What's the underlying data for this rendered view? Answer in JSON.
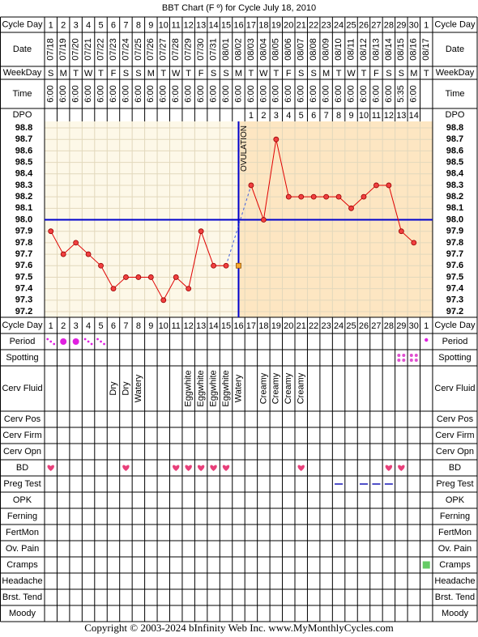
{
  "title": "BBT Chart (F º) for Cycle July 18, 2010",
  "header_labels": {
    "cycle_day": "Cycle Day",
    "date": "Date",
    "weekday": "WeekDay",
    "time": "Time",
    "dpo": "DPO"
  },
  "cycle_days": [
    1,
    2,
    3,
    4,
    5,
    6,
    7,
    8,
    9,
    10,
    11,
    12,
    13,
    14,
    15,
    16,
    17,
    18,
    19,
    20,
    21,
    22,
    23,
    24,
    25,
    26,
    27,
    28,
    29,
    30,
    1
  ],
  "dates": [
    "07/18",
    "07/19",
    "07/20",
    "07/21",
    "07/22",
    "07/23",
    "07/24",
    "07/25",
    "07/26",
    "07/27",
    "07/28",
    "07/29",
    "07/30",
    "07/31",
    "08/01",
    "08/02",
    "08/03",
    "08/04",
    "08/05",
    "08/06",
    "08/07",
    "08/08",
    "08/09",
    "08/10",
    "08/11",
    "08/12",
    "08/13",
    "08/14",
    "08/15",
    "08/16",
    "08/17"
  ],
  "weekdays": [
    "S",
    "M",
    "T",
    "W",
    "T",
    "F",
    "S",
    "S",
    "M",
    "T",
    "W",
    "T",
    "F",
    "S",
    "S",
    "M",
    "T",
    "W",
    "T",
    "F",
    "S",
    "S",
    "M",
    "T",
    "W",
    "T",
    "F",
    "S",
    "S",
    "M",
    "T"
  ],
  "times": [
    "6:00",
    "6:00",
    "6:00",
    "6:00",
    "6:00",
    "6:00",
    "6:00",
    "6:00",
    "6:00",
    "6:00",
    "6:00",
    "6:00",
    "6:00",
    "6:00",
    "6:00",
    "6:00",
    "6:00",
    "6:00",
    "6:00",
    "6:00",
    "6:00",
    "6:00",
    "6:00",
    "6:00",
    "6:00",
    "6:00",
    "6:00",
    "6:00",
    "5:35",
    "6:00",
    null
  ],
  "dpo": [
    null,
    null,
    null,
    null,
    null,
    null,
    null,
    null,
    null,
    null,
    null,
    null,
    null,
    null,
    null,
    null,
    1,
    2,
    3,
    4,
    5,
    6,
    7,
    8,
    9,
    10,
    11,
    12,
    13,
    14,
    null
  ],
  "chart_data": {
    "type": "line",
    "values": [
      97.9,
      97.7,
      97.8,
      97.7,
      97.6,
      97.4,
      97.5,
      97.5,
      97.5,
      97.3,
      97.5,
      97.4,
      97.9,
      97.6,
      97.6,
      null,
      98.3,
      98.0,
      98.7,
      98.2,
      98.2,
      98.2,
      98.2,
      98.2,
      98.1,
      98.2,
      98.3,
      98.3,
      97.9,
      97.8,
      null
    ],
    "excluded": [
      null,
      null,
      null,
      null,
      null,
      null,
      null,
      null,
      null,
      null,
      null,
      null,
      null,
      null,
      null,
      97.6,
      null,
      null,
      null,
      null,
      null,
      null,
      null,
      null,
      null,
      null,
      null,
      null,
      null,
      null,
      null
    ],
    "color": "#e00000",
    "ylim": [
      97.2,
      98.8
    ],
    "yticks": [
      98.8,
      98.7,
      98.6,
      98.5,
      98.4,
      98.3,
      98.2,
      98.1,
      {
        "value": 98.0,
        "label": "98.0"
      },
      97.9,
      97.8,
      97.7,
      97.6,
      97.5,
      97.4,
      97.3,
      97.2
    ],
    "coverline": 98.0,
    "ovulation_day_index": 15,
    "ovulation_label": "OVULATION",
    "grid": true
  },
  "rows": [
    {
      "label": "Period",
      "kind": "period",
      "values": [
        "light",
        "heavy",
        "heavy",
        "light",
        "light",
        null,
        null,
        null,
        null,
        null,
        null,
        null,
        null,
        null,
        null,
        null,
        null,
        null,
        null,
        null,
        null,
        null,
        null,
        null,
        null,
        null,
        null,
        null,
        null,
        null,
        "dot"
      ]
    },
    {
      "label": "Spotting",
      "kind": "spot",
      "values": [
        null,
        null,
        null,
        null,
        null,
        null,
        null,
        null,
        null,
        null,
        null,
        null,
        null,
        null,
        null,
        null,
        null,
        null,
        null,
        null,
        null,
        null,
        null,
        null,
        null,
        null,
        null,
        null,
        true,
        true,
        null
      ]
    },
    {
      "label": "Cerv Fluid",
      "kind": "text",
      "values": [
        null,
        null,
        null,
        null,
        null,
        "Dry",
        "Dry",
        "Watery",
        null,
        null,
        null,
        "Eggwhite",
        "Eggwhite",
        "Eggwhite",
        "Eggwhite",
        "Watery",
        null,
        "Creamy",
        "Creamy",
        "Creamy",
        "Creamy",
        null,
        null,
        null,
        null,
        null,
        null,
        null,
        null,
        null,
        null
      ]
    },
    {
      "label": "Cerv Pos"
    },
    {
      "label": "Cerv Firm"
    },
    {
      "label": "Cerv Opn"
    },
    {
      "label": "BD",
      "kind": "heart",
      "values": [
        true,
        null,
        null,
        null,
        null,
        null,
        true,
        null,
        null,
        null,
        true,
        true,
        true,
        true,
        true,
        null,
        null,
        null,
        null,
        null,
        true,
        null,
        null,
        null,
        null,
        null,
        null,
        true,
        true,
        null,
        null
      ]
    },
    {
      "label": "Preg Test",
      "kind": "dash",
      "values": [
        null,
        null,
        null,
        null,
        null,
        null,
        null,
        null,
        null,
        null,
        null,
        null,
        null,
        null,
        null,
        null,
        null,
        null,
        null,
        null,
        null,
        null,
        null,
        true,
        null,
        true,
        true,
        true,
        null,
        null,
        null
      ]
    },
    {
      "label": "OPK"
    },
    {
      "label": "Ferning"
    },
    {
      "label": "FertMon"
    },
    {
      "label": "Ov. Pain"
    },
    {
      "label": "Cramps",
      "kind": "square",
      "values": [
        null,
        null,
        null,
        null,
        null,
        null,
        null,
        null,
        null,
        null,
        null,
        null,
        null,
        null,
        null,
        null,
        null,
        null,
        null,
        null,
        null,
        null,
        null,
        null,
        null,
        null,
        null,
        null,
        null,
        null,
        true
      ]
    },
    {
      "label": "Headache"
    },
    {
      "label": "Brst. Tend"
    },
    {
      "label": "Moody"
    }
  ],
  "footer": "Copyright © 2003-2024 bInfinity Web Inc.     www.MyMonthlyCycles.com"
}
